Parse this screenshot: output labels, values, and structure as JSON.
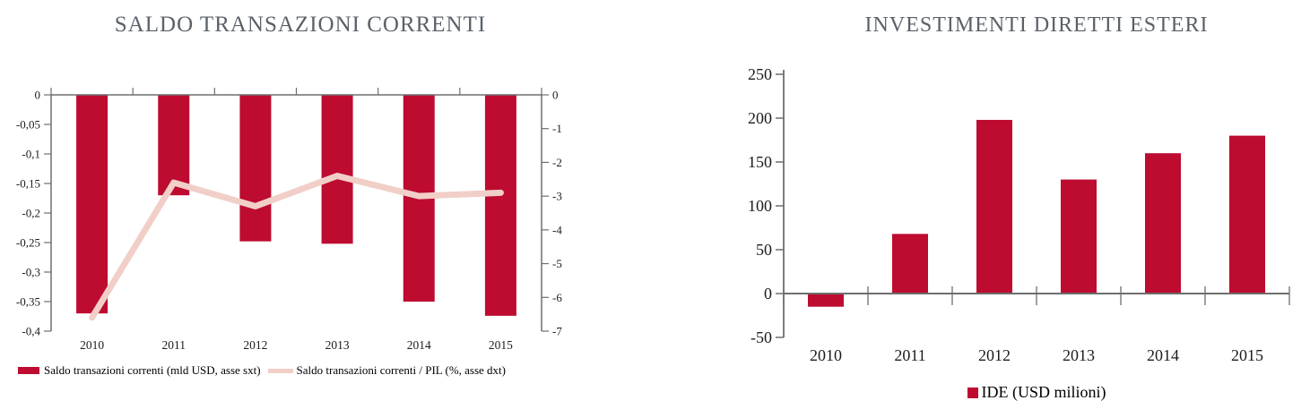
{
  "colors": {
    "bar": "#be0b30",
    "line": "#f1cfc8",
    "title": "#5a6169",
    "axis": "#6e6e6e",
    "text": "#1c1c1c"
  },
  "chart_data": [
    {
      "type": "bar+line",
      "title": "SALDO TRANSAZIONI CORRENTI",
      "categories": [
        "2010",
        "2011",
        "2012",
        "2013",
        "2014",
        "2015"
      ],
      "series": [
        {
          "name": "Saldo transazioni correnti (mld USD, asse sxt)",
          "type": "bar",
          "axis": "left",
          "color": "#be0b30",
          "values": [
            -0.37,
            -0.17,
            -0.248,
            -0.252,
            -0.35,
            -0.374
          ]
        },
        {
          "name": "Saldo transazioni correnti / PIL (%, asse dxt)",
          "type": "line",
          "axis": "right",
          "color": "#f1cfc8",
          "values": [
            -6.6,
            -2.6,
            -3.3,
            -2.4,
            -3.0,
            -2.9
          ]
        }
      ],
      "left_axis": {
        "range": [
          -0.4,
          0
        ],
        "tick_labels": [
          "0",
          "-0,05",
          "-0,1",
          "-0,15",
          "-0,2",
          "-0,25",
          "-0,3",
          "-0,35",
          "-0,4"
        ]
      },
      "right_axis": {
        "range": [
          -7,
          0
        ],
        "tick_labels": [
          "0",
          "-1",
          "-2",
          "-3",
          "-4",
          "-5",
          "-6",
          "-7"
        ]
      },
      "grid": false,
      "legend_position": "bottom"
    },
    {
      "type": "bar",
      "title": "INVESTIMENTI DIRETTI ESTERI",
      "categories": [
        "2010",
        "2011",
        "2012",
        "2013",
        "2014",
        "2015"
      ],
      "series": [
        {
          "name": "IDE (USD milioni)",
          "type": "bar",
          "axis": "left",
          "color": "#be0b30",
          "values": [
            -15,
            68,
            198,
            130,
            160,
            180
          ]
        }
      ],
      "left_axis": {
        "range": [
          -50,
          250
        ],
        "tick_labels": [
          "250",
          "200",
          "150",
          "100",
          "50",
          "0",
          "-50"
        ]
      },
      "grid": false,
      "legend_position": "bottom"
    }
  ]
}
